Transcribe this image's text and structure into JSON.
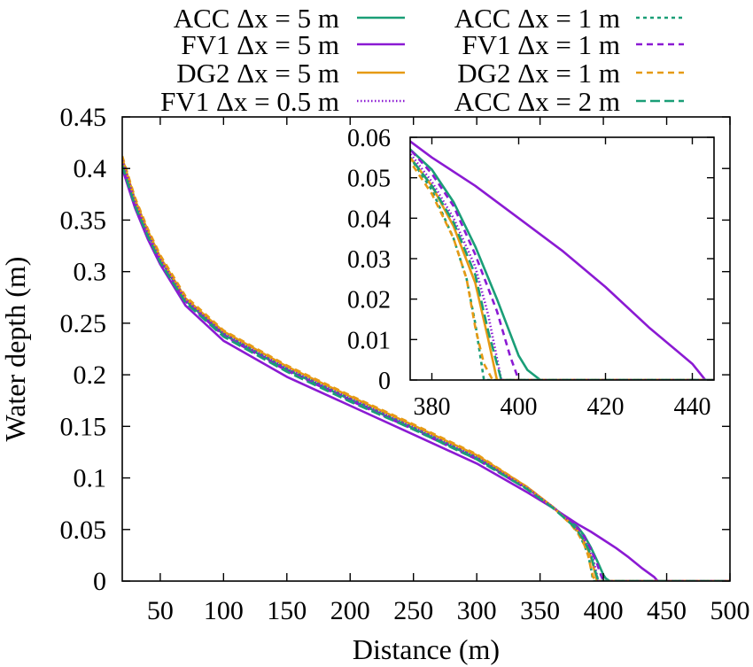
{
  "chart_data": {
    "type": "line",
    "xlabel": "Distance (m)",
    "ylabel": "Water depth (m)",
    "xlim": [
      20,
      500
    ],
    "ylim": [
      0,
      0.45
    ],
    "xticks": [
      "50",
      "100",
      "150",
      "200",
      "250",
      "300",
      "350",
      "400",
      "450",
      "500"
    ],
    "yticks": [
      "0",
      "0.05",
      "0.1",
      "0.15",
      "0.2",
      "0.25",
      "0.3",
      "0.35",
      "0.4",
      "0.45"
    ],
    "grid": false,
    "legend_position": "top",
    "colors": {
      "ACC": "#1a9e77",
      "FV1": "#8b1ad3",
      "DG2": "#e69a14"
    },
    "series": [
      {
        "name": "ACC Δx = 5 m",
        "method": "ACC",
        "dx": "5",
        "style": "solid",
        "color": "#1a9e77",
        "x": [
          20,
          30,
          40,
          50,
          70,
          100,
          150,
          200,
          250,
          300,
          340,
          360,
          375,
          380,
          385,
          390,
          395,
          400,
          402,
          405,
          500
        ],
        "y": [
          0.405,
          0.368,
          0.338,
          0.312,
          0.272,
          0.239,
          0.205,
          0.176,
          0.148,
          0.119,
          0.09,
          0.072,
          0.057,
          0.052,
          0.044,
          0.033,
          0.02,
          0.006,
          0.0025,
          0,
          0
        ]
      },
      {
        "name": "ACC Δx = 1 m",
        "method": "ACC",
        "dx": "1",
        "style": "dotted-short",
        "color": "#1a9e77",
        "x": [
          20,
          30,
          40,
          50,
          70,
          100,
          150,
          200,
          250,
          300,
          340,
          360,
          375,
          380,
          385,
          388,
          390,
          392,
          500
        ],
        "y": [
          0.41,
          0.37,
          0.34,
          0.314,
          0.274,
          0.241,
          0.207,
          0.178,
          0.15,
          0.121,
          0.09,
          0.072,
          0.055,
          0.047,
          0.035,
          0.025,
          0.014,
          0,
          0
        ]
      },
      {
        "name": "FV1 Δx = 5 m",
        "method": "FV1",
        "dx": "5",
        "style": "solid",
        "color": "#8b1ad3",
        "x": [
          20,
          30,
          40,
          50,
          70,
          100,
          150,
          200,
          250,
          300,
          340,
          360,
          375,
          380,
          390,
          400,
          410,
          420,
          430,
          440,
          443,
          500
        ],
        "y": [
          0.4,
          0.362,
          0.332,
          0.307,
          0.267,
          0.233,
          0.198,
          0.17,
          0.142,
          0.114,
          0.086,
          0.071,
          0.059,
          0.055,
          0.048,
          0.04,
          0.032,
          0.023,
          0.013,
          0.004,
          0,
          0
        ]
      },
      {
        "name": "FV1 Δx = 1 m",
        "method": "FV1",
        "dx": "1",
        "style": "dashed-short",
        "color": "#8b1ad3",
        "x": [
          20,
          30,
          40,
          50,
          70,
          100,
          150,
          200,
          250,
          300,
          340,
          360,
          375,
          380,
          385,
          390,
          395,
          398,
          400,
          500
        ],
        "y": [
          0.405,
          0.366,
          0.336,
          0.311,
          0.271,
          0.238,
          0.204,
          0.175,
          0.147,
          0.118,
          0.089,
          0.072,
          0.057,
          0.051,
          0.043,
          0.031,
          0.017,
          0.006,
          0,
          0
        ]
      },
      {
        "name": "DG2 Δx = 5 m",
        "method": "DG2",
        "dx": "5",
        "style": "solid",
        "color": "#e69a14",
        "x": [
          20,
          30,
          40,
          50,
          70,
          100,
          150,
          200,
          250,
          300,
          340,
          360,
          375,
          380,
          385,
          390,
          393,
          395,
          500
        ],
        "y": [
          0.41,
          0.37,
          0.34,
          0.314,
          0.274,
          0.242,
          0.208,
          0.179,
          0.151,
          0.122,
          0.091,
          0.072,
          0.055,
          0.048,
          0.038,
          0.024,
          0.01,
          0,
          0
        ]
      },
      {
        "name": "DG2 Δx = 1 m",
        "method": "DG2",
        "dx": "1",
        "style": "dashed-short",
        "color": "#e69a14",
        "x": [
          20,
          30,
          40,
          50,
          70,
          100,
          150,
          200,
          250,
          300,
          340,
          360,
          375,
          380,
          385,
          388,
          390,
          392,
          394,
          500
        ],
        "y": [
          0.412,
          0.372,
          0.342,
          0.316,
          0.276,
          0.243,
          0.209,
          0.18,
          0.152,
          0.123,
          0.091,
          0.072,
          0.054,
          0.046,
          0.035,
          0.025,
          0.013,
          0.004,
          0,
          0
        ]
      },
      {
        "name": "FV1 Δx = 0.5 m",
        "method": "FV1",
        "dx": "0.5",
        "style": "dotted",
        "color": "#8b1ad3",
        "x": [
          20,
          30,
          40,
          50,
          70,
          100,
          150,
          200,
          250,
          300,
          340,
          360,
          375,
          380,
          385,
          390,
          393,
          396,
          500
        ],
        "y": [
          0.408,
          0.368,
          0.338,
          0.312,
          0.273,
          0.24,
          0.206,
          0.177,
          0.149,
          0.12,
          0.09,
          0.072,
          0.056,
          0.049,
          0.04,
          0.028,
          0.016,
          0,
          0
        ]
      },
      {
        "name": "ACC Δx = 2 m",
        "method": "ACC",
        "dx": "2",
        "style": "dashed-long",
        "color": "#1a9e77",
        "x": [
          20,
          30,
          40,
          50,
          70,
          100,
          150,
          200,
          250,
          300,
          340,
          360,
          375,
          380,
          385,
          390,
          393,
          396,
          500
        ],
        "y": [
          0.403,
          0.364,
          0.335,
          0.309,
          0.27,
          0.237,
          0.203,
          0.174,
          0.147,
          0.118,
          0.089,
          0.071,
          0.055,
          0.048,
          0.039,
          0.026,
          0.012,
          0,
          0
        ]
      }
    ],
    "inset": {
      "xlim": [
        375,
        445
      ],
      "ylim": [
        0,
        0.06
      ],
      "xticks": [
        "380",
        "400",
        "420",
        "440"
      ],
      "yticks": [
        "0",
        "0.01",
        "0.02",
        "0.03",
        "0.04",
        "0.05",
        "0.06"
      ]
    }
  }
}
